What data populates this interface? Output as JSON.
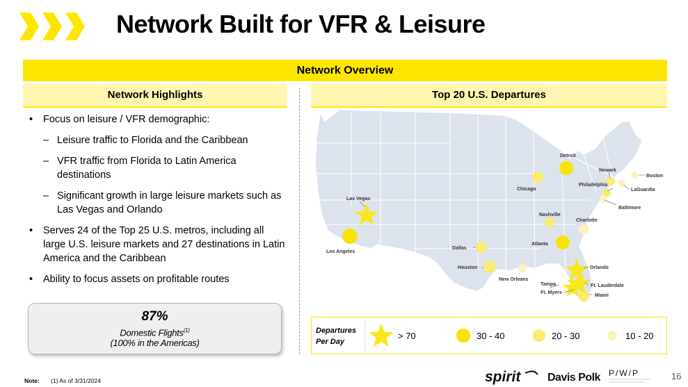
{
  "header": {
    "title": "Network Built for VFR & Leisure"
  },
  "banner": {
    "label": "Network Overview"
  },
  "left": {
    "heading": "Network Highlights",
    "bullet1": "Focus on leisure / VFR demographic:",
    "sub1": "Leisure traffic to Florida and the Caribbean",
    "sub2": "VFR traffic from Florida to Latin America destinations",
    "sub3": "Significant growth in large leisure markets such as Las Vegas and Orlando",
    "bullet2": "Serves 24 of the Top 25 U.S. metros, including all large U.S. leisure markets and 27 destinations in Latin America and the Caribbean",
    "bullet3": "Ability to focus assets on profitable routes"
  },
  "stat": {
    "value": "87%",
    "label": "Domestic Flights",
    "footnote": "(1)",
    "sub": "(100% in the Americas)"
  },
  "right": {
    "heading": "Top 20 U.S. Departures",
    "cities": {
      "detroit": "Detroit",
      "newark": "Newark",
      "boston": "Boston",
      "chicago": "Chicago",
      "philadelphia": "Philadelphia",
      "laguardia": "LaGuardia",
      "baltimore": "Baltimore",
      "las_vegas": "Las Vegas",
      "nashville": "Nashville",
      "charlotte": "Charlotte",
      "los_angeles": "Los Angeles",
      "atlanta": "Atlanta",
      "dallas": "Dallas",
      "houston": "Houston",
      "orlando": "Orlando",
      "new_orleans": "New Orleans",
      "tampa": "Tampa",
      "ft_lauderdale": "Ft. Lauderdale",
      "ft_myers": "Ft. Myers",
      "miami": "Miami"
    }
  },
  "legend": {
    "title_line1": "Departures",
    "title_line2": "Per Day",
    "tier1": "> 70",
    "tier2": "30 - 40",
    "tier3": "20 - 30",
    "tier4": "10 - 20"
  },
  "colors": {
    "accent": "#ffe600",
    "tier1": "#f8e71c",
    "tier2": "#f7e400",
    "tier3": "#f9ec6e",
    "tier4": "#fbf3b8",
    "map_fill": "#dde3ed"
  },
  "footer": {
    "note_label": "Note:",
    "note_text": "(1) As of 3/31/2024",
    "logo_spirit": "spirit",
    "logo_davis": "Davis Polk",
    "logo_pwp": "P/W/P",
    "page": "16"
  }
}
